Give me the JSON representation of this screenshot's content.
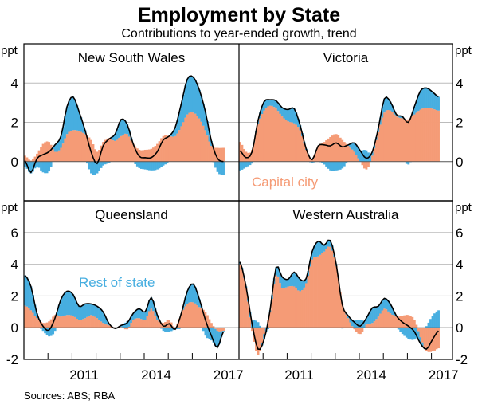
{
  "title": "Employment by State",
  "subtitle": "Contributions to year-ended growth, trend",
  "source": "Sources: ABS; RBA",
  "axis_unit": "ppt",
  "x_tick_labels": [
    "2011",
    "2014",
    "2017"
  ],
  "annotations": {
    "capital": "Capital city",
    "rest": "Rest of state"
  },
  "colors": {
    "capital": "#F59B76",
    "rest": "#47AEE0",
    "total": "#000000",
    "grid": "#BBBBBB"
  },
  "chart_data": [
    {
      "type": "bar",
      "title": "New South Wales",
      "ylabel": "ppt",
      "ylim": [
        -2,
        6
      ],
      "yticks": [
        0,
        2,
        4
      ],
      "x_start": 2009.0,
      "x_step": 0.25,
      "series": [
        {
          "name": "Capital city",
          "kind": "stacked-bar",
          "values": [
            0.3,
            0.05,
            0.4,
            0.9,
            1.0,
            0.5,
            0.7,
            1.4,
            1.6,
            1.55,
            1.4,
            1.1,
            0.5,
            1.0,
            1.2,
            1.05,
            1.3,
            1.4,
            0.9,
            0.6,
            0.6,
            0.65,
            0.9,
            1.3,
            1.3,
            1.3,
            1.8,
            2.4,
            2.5,
            2.2,
            1.6,
            0.8,
            0.7,
            0.7
          ]
        },
        {
          "name": "Total",
          "kind": "line",
          "values": [
            0.05,
            -0.55,
            0.15,
            0.35,
            0.5,
            0.85,
            1.3,
            2.8,
            3.3,
            2.55,
            1.6,
            0.5,
            -0.1,
            0.8,
            1.15,
            1.4,
            2.15,
            1.9,
            0.9,
            0.27,
            0.2,
            0.2,
            0.5,
            1.1,
            1.3,
            1.75,
            2.95,
            4.2,
            4.3,
            3.65,
            2.55,
            1.05,
            0.17,
            0.0
          ]
        }
      ]
    },
    {
      "type": "bar",
      "title": "Victoria",
      "ylabel": "ppt",
      "ylim": [
        -2,
        6
      ],
      "yticks": [
        0,
        2,
        4
      ],
      "x_start": 2009.0,
      "x_step": 0.25,
      "series": [
        {
          "name": "Capital city",
          "kind": "stacked-bar",
          "values": [
            1.0,
            0.5,
            0.6,
            1.9,
            2.6,
            2.85,
            2.7,
            2.3,
            2.05,
            1.95,
            1.6,
            0.6,
            0.15,
            0.8,
            1.0,
            1.25,
            1.4,
            1.1,
            0.8,
            0.5,
            0.0,
            -0.4,
            0.3,
            1.5,
            2.5,
            2.6,
            2.3,
            2.2,
            2.15,
            2.4,
            2.65,
            2.75,
            2.7,
            2.6
          ]
        },
        {
          "name": "Total",
          "kind": "line",
          "values": [
            0.55,
            0.2,
            0.5,
            2.1,
            3.05,
            3.15,
            3.1,
            2.75,
            2.65,
            2.7,
            1.85,
            0.65,
            0.1,
            0.8,
            0.85,
            0.8,
            0.95,
            0.75,
            0.85,
            0.95,
            0.55,
            0.17,
            0.5,
            1.7,
            3.2,
            3.05,
            2.4,
            2.3,
            2.0,
            2.8,
            3.6,
            3.75,
            3.55,
            3.3
          ]
        }
      ]
    },
    {
      "type": "bar",
      "title": "Queensland",
      "ylabel": "ppt",
      "ylim": [
        -2,
        8
      ],
      "yticks": [
        -2,
        0,
        2,
        4,
        6
      ],
      "x_start": 2009.0,
      "x_step": 0.25,
      "series": [
        {
          "name": "Capital city",
          "kind": "stacked-bar",
          "values": [
            1.4,
            1.1,
            0.6,
            0.3,
            0.4,
            0.8,
            0.7,
            0.8,
            0.75,
            0.5,
            0.6,
            0.8,
            0.6,
            0.3,
            0.15,
            0.0,
            0.05,
            -0.1,
            0.5,
            0.6,
            0.5,
            1.2,
            0.5,
            0.3,
            0.5,
            0.0,
            0.9,
            1.5,
            1.6,
            1.3,
            1.0,
            0.3,
            -0.2,
            -0.2
          ]
        },
        {
          "name": "Total",
          "kind": "line",
          "values": [
            3.3,
            2.6,
            0.9,
            0.1,
            -0.15,
            0.6,
            1.8,
            2.3,
            2.1,
            1.35,
            1.5,
            1.5,
            1.35,
            1.0,
            0.25,
            -0.05,
            0.15,
            0.3,
            0.9,
            1.2,
            1.0,
            1.9,
            0.8,
            0.1,
            0.25,
            -0.1,
            0.9,
            2.3,
            2.75,
            1.8,
            0.5,
            -0.5,
            -1.25,
            -0.25
          ]
        }
      ]
    },
    {
      "type": "bar",
      "title": "Western Australia",
      "ylabel": "ppt",
      "ylim": [
        -2,
        8
      ],
      "yticks": [
        -2,
        0,
        2,
        4,
        6
      ],
      "x_start": 2009.0,
      "x_step": 0.25,
      "series": [
        {
          "name": "Capital city",
          "kind": "stacked-bar",
          "values": [
            4.0,
            2.5,
            -0.2,
            -1.7,
            -0.4,
            1.0,
            3.3,
            2.5,
            2.6,
            2.6,
            2.3,
            2.8,
            4.3,
            4.5,
            4.8,
            5.1,
            3.9,
            1.5,
            0.6,
            -0.1,
            -0.4,
            0.2,
            0.3,
            0.7,
            1.2,
            0.9,
            0.7,
            0.75,
            0.8,
            0.5,
            -0.6,
            -1.45,
            -1.5,
            -1.3
          ]
        },
        {
          "name": "Total",
          "kind": "line",
          "values": [
            4.15,
            2.6,
            0.25,
            -1.35,
            -0.75,
            1.1,
            3.8,
            3.2,
            3.05,
            3.5,
            3.05,
            3.1,
            4.8,
            5.45,
            5.2,
            5.5,
            4.0,
            1.45,
            0.75,
            0.35,
            0.1,
            0.6,
            1.25,
            1.35,
            1.85,
            1.5,
            0.75,
            0.35,
            0.1,
            -0.25,
            -1.0,
            -1.35,
            -0.75,
            -0.2
          ]
        }
      ]
    }
  ]
}
